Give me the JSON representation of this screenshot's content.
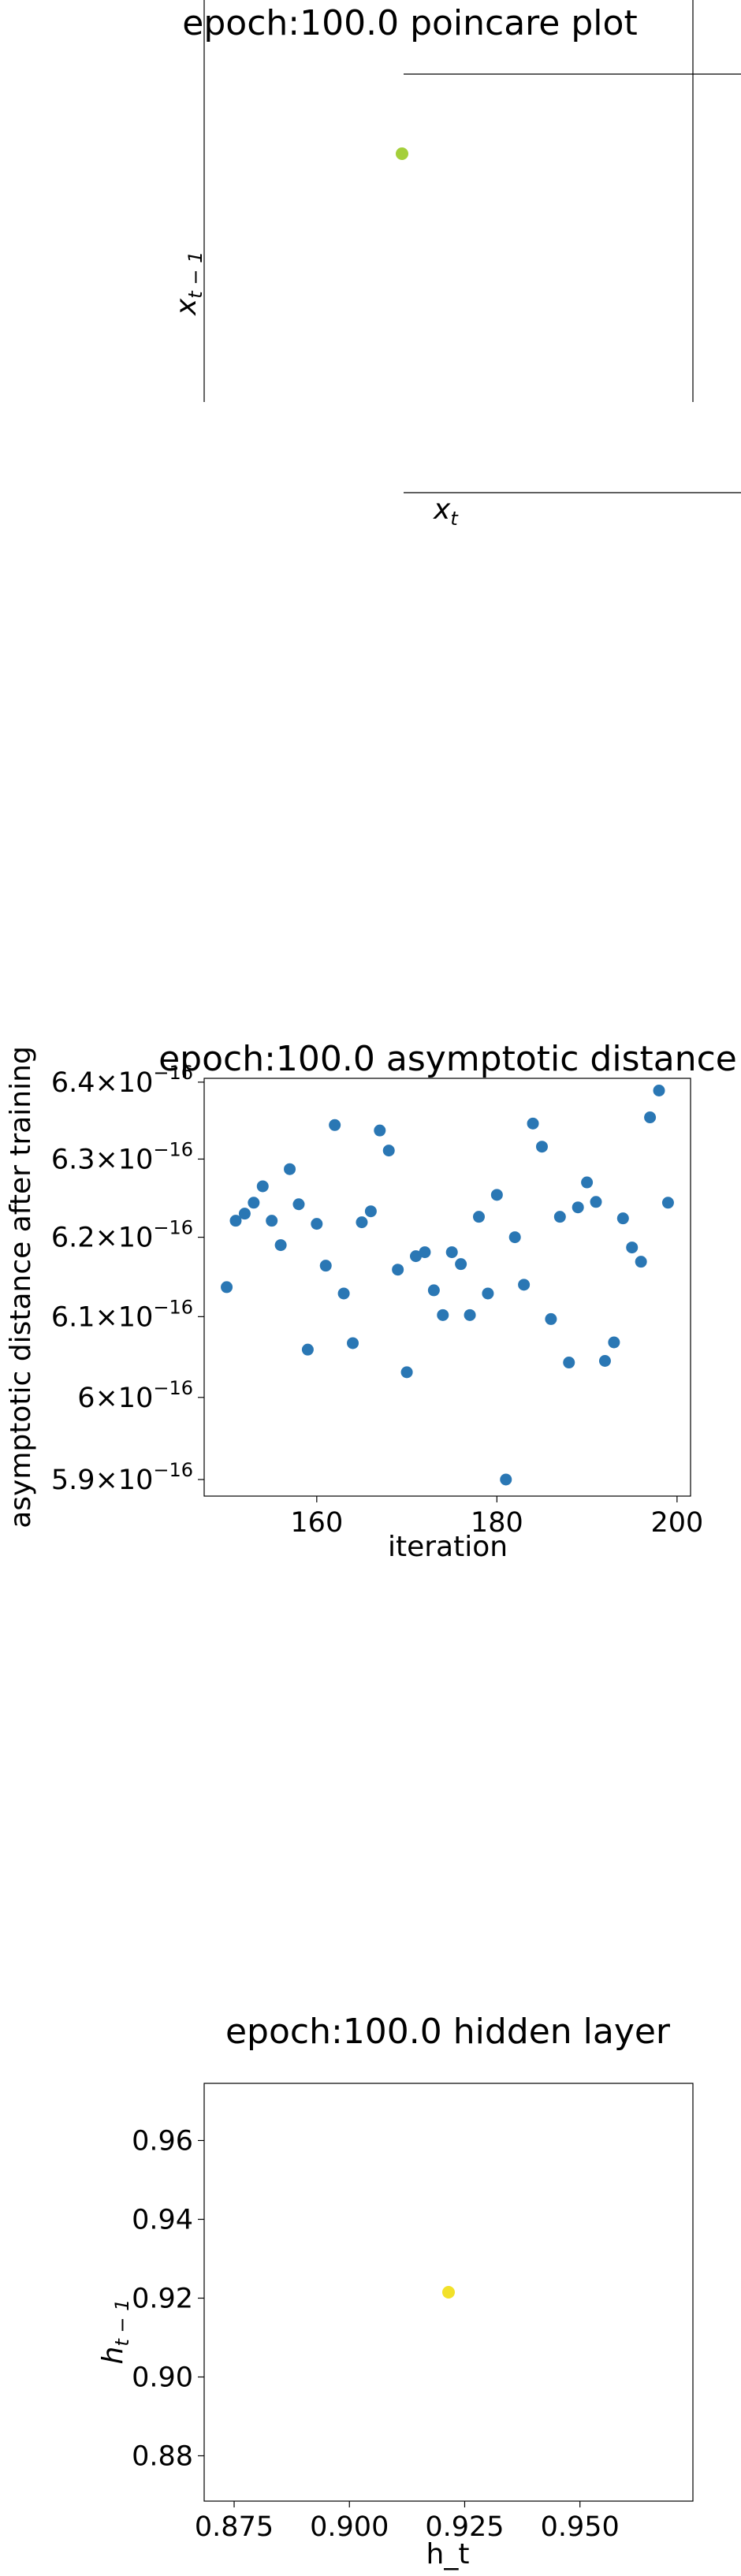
{
  "colors": {
    "poincare_point": "#a4cf3a",
    "scatter_point": "#2a77b4",
    "hidden_point": "#f2e12a",
    "axis": "#000000",
    "background": "#ffffff"
  },
  "chart_data": [
    {
      "type": "scatter",
      "title": "epoch:100.0 poincare plot",
      "xlabel": "x_t",
      "ylabel": "x_{t−1}",
      "xlabel_main": "x",
      "xlabel_sub": "t",
      "ylabel_main": "x",
      "ylabel_sub": "t − 1",
      "ticks": "none",
      "x": [
        0
      ],
      "y": [
        0
      ]
    },
    {
      "type": "scatter",
      "title": "epoch:100.0 asymptotic distance",
      "xlabel": "iteration",
      "ylabel": "asymptotic distance after training",
      "yscale": "log",
      "xlim": [
        147.5,
        201.5
      ],
      "ylim": [
        5.88e-16,
        6.405e-16
      ],
      "xticks": [
        160,
        180,
        200
      ],
      "xtick_labels": [
        "160",
        "180",
        "200"
      ],
      "yticks": [
        5.9e-16,
        6e-16,
        6.1e-16,
        6.2e-16,
        6.3e-16,
        6.4e-16
      ],
      "ytick_labels": [
        {
          "mant": "5.9",
          "exp": "−16"
        },
        {
          "mant": "6",
          "exp": "−16"
        },
        {
          "mant": "6.1",
          "exp": "−16"
        },
        {
          "mant": "6.2",
          "exp": "−16"
        },
        {
          "mant": "6.3",
          "exp": "−16"
        },
        {
          "mant": "6.4",
          "exp": "−16"
        }
      ],
      "x": [
        150,
        151,
        152,
        153,
        154,
        155,
        156,
        157,
        158,
        159,
        160,
        161,
        162,
        163,
        164,
        165,
        166,
        167,
        168,
        169,
        170,
        171,
        172,
        173,
        174,
        175,
        176,
        177,
        178,
        179,
        180,
        181,
        182,
        183,
        184,
        185,
        186,
        187,
        188,
        189,
        190,
        191,
        192,
        193,
        194,
        195,
        196,
        197,
        198,
        199
      ],
      "y": [
        6.137e-16,
        6.221e-16,
        6.23e-16,
        6.244e-16,
        6.265e-16,
        6.221e-16,
        6.19e-16,
        6.287e-16,
        6.242e-16,
        6.059e-16,
        6.217e-16,
        6.164e-16,
        6.344e-16,
        6.129e-16,
        6.067e-16,
        6.219e-16,
        6.233e-16,
        6.337e-16,
        6.311e-16,
        6.159e-16,
        6.031e-16,
        6.176e-16,
        6.181e-16,
        6.133e-16,
        6.102e-16,
        6.181e-16,
        6.166e-16,
        6.102e-16,
        6.226e-16,
        6.129e-16,
        6.254e-16,
        5.9e-16,
        6.2e-16,
        6.14e-16,
        6.346e-16,
        6.316e-16,
        6.097e-16,
        6.226e-16,
        6.043e-16,
        6.238e-16,
        6.27e-16,
        6.245e-16,
        6.045e-16,
        6.068e-16,
        6.224e-16,
        6.187e-16,
        6.169e-16,
        6.354e-16,
        6.389e-16,
        6.244e-16
      ]
    },
    {
      "type": "scatter",
      "title": "epoch:100.0 hidden layer",
      "xlabel": "h_t",
      "ylabel": "h_{t−1}",
      "ylabel_main": "h",
      "ylabel_sub": "t − 1",
      "xlim": [
        0.8685,
        0.9745
      ],
      "ylim": [
        0.8685,
        0.9745
      ],
      "xticks": [
        0.875,
        0.9,
        0.925,
        0.95
      ],
      "xtick_labels": [
        "0.875",
        "0.900",
        "0.925",
        "0.950"
      ],
      "yticks": [
        0.88,
        0.9,
        0.92,
        0.94,
        0.96
      ],
      "ytick_labels": [
        "0.88",
        "0.90",
        "0.92",
        "0.94",
        "0.96"
      ],
      "x": [
        0.9215
      ],
      "y": [
        0.9215
      ]
    }
  ]
}
